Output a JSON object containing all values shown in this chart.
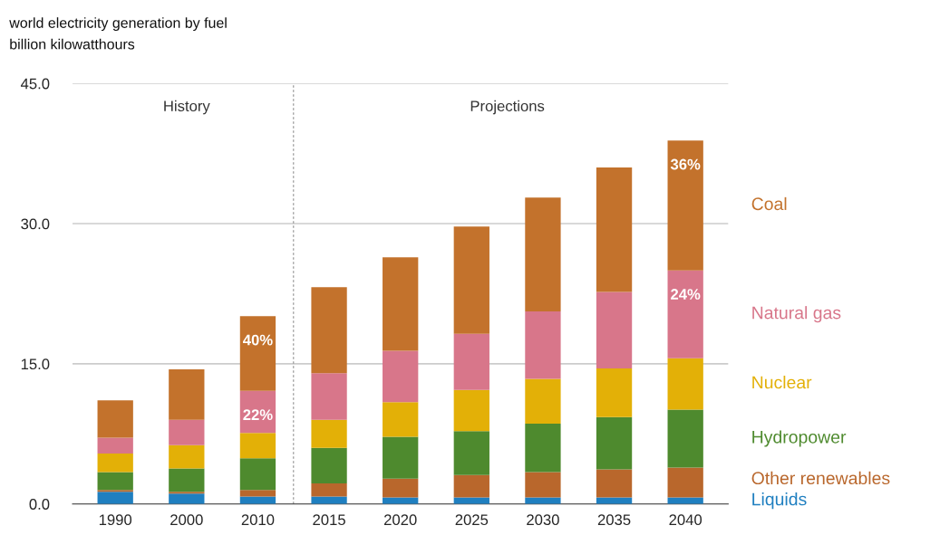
{
  "chart_data": {
    "type": "bar",
    "stacked": true,
    "title": "world electricity generation by fuel",
    "subtitle": "billion kilowatthours",
    "categories": [
      "1990",
      "2000",
      "2010",
      "2015",
      "2020",
      "2025",
      "2030",
      "2035",
      "2040"
    ],
    "series": [
      {
        "name": "Liquids",
        "color": "#1f7fc0",
        "values": [
          1.3,
          1.1,
          0.8,
          0.8,
          0.7,
          0.7,
          0.7,
          0.7,
          0.7
        ]
      },
      {
        "name": "Other renewables",
        "color": "#b9672c",
        "values": [
          0.2,
          0.2,
          0.7,
          1.4,
          2.0,
          2.4,
          2.7,
          3.0,
          3.2
        ]
      },
      {
        "name": "Hydropower",
        "color": "#4e8a2e",
        "values": [
          1.9,
          2.5,
          3.4,
          3.8,
          4.5,
          4.7,
          5.2,
          5.6,
          6.2
        ]
      },
      {
        "name": "Nuclear",
        "color": "#e3b007",
        "values": [
          2.0,
          2.5,
          2.7,
          3.0,
          3.7,
          4.4,
          4.8,
          5.2,
          5.5
        ]
      },
      {
        "name": "Natural gas",
        "color": "#d8768a",
        "values": [
          1.7,
          2.7,
          4.5,
          5.0,
          5.5,
          6.0,
          7.2,
          8.2,
          9.4
        ]
      },
      {
        "name": "Coal",
        "color": "#c3722c",
        "values": [
          4.0,
          5.4,
          8.0,
          9.2,
          10.0,
          11.5,
          12.2,
          13.3,
          13.9
        ]
      }
    ],
    "ylim": [
      0,
      45
    ],
    "yticks": [
      {
        "value": 0,
        "label": "0.0"
      },
      {
        "value": 15,
        "label": "15.0"
      },
      {
        "value": 30,
        "label": "30.0"
      },
      {
        "value": 45,
        "label": "45.0"
      }
    ],
    "grid": "y",
    "legend": "right",
    "ref_lines": [
      {
        "axis": "x",
        "value": "2015",
        "line_style": "dotted",
        "color": "#999999"
      }
    ],
    "annotations": [
      "History",
      "Projections",
      {
        "text": "40%",
        "x": "2010",
        "y": 20.1
      },
      {
        "text": "22%",
        "x": "2010",
        "y": 12.1
      },
      {
        "text": "36%",
        "x": "2040",
        "y": 38.9
      },
      {
        "text": "24%",
        "x": "2040",
        "y": 25.0
      }
    ]
  }
}
